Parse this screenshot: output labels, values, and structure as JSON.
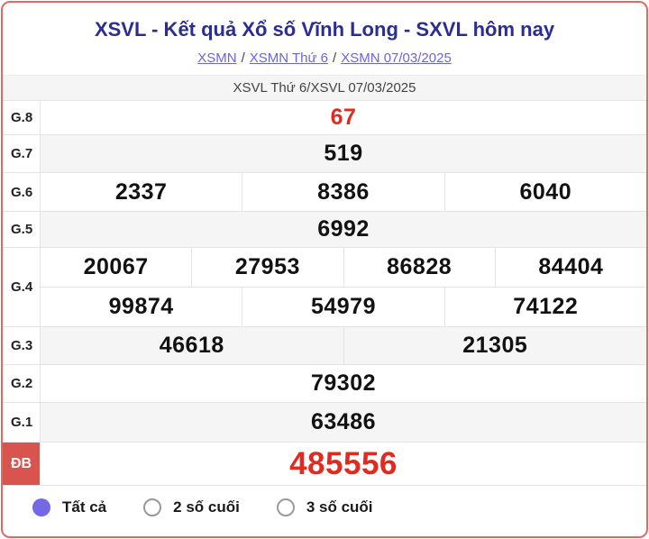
{
  "header": {
    "title": "XSVL - Kết quả Xổ số Vĩnh Long - SXVL hôm nay",
    "separator": "/",
    "breadcrumb1": {
      "link_region": "XSMN",
      "link_day": "XSMN Thứ 6",
      "link_date": "XSMN 07/03/2025"
    },
    "breadcrumb2": {
      "link_province": "XSVL",
      "day_text": "Thứ 6",
      "link_date": "XSVL 07/03/2025"
    }
  },
  "results": {
    "rows": [
      {
        "label": "G.8",
        "groups": [
          [
            "67"
          ]
        ]
      },
      {
        "label": "G.7",
        "groups": [
          [
            "519"
          ]
        ]
      },
      {
        "label": "G.6",
        "groups": [
          [
            "2337",
            "8386",
            "6040"
          ]
        ]
      },
      {
        "label": "G.5",
        "groups": [
          [
            "6992"
          ]
        ]
      },
      {
        "label": "G.4",
        "groups": [
          [
            "20067",
            "27953",
            "86828",
            "84404"
          ],
          [
            "99874",
            "54979",
            "74122"
          ]
        ]
      },
      {
        "label": "G.3",
        "groups": [
          [
            "46618",
            "21305"
          ]
        ]
      },
      {
        "label": "G.2",
        "groups": [
          [
            "79302"
          ]
        ]
      },
      {
        "label": "G.1",
        "groups": [
          [
            "63486"
          ]
        ]
      },
      {
        "label": "ĐB",
        "groups": [
          [
            "485556"
          ]
        ]
      }
    ]
  },
  "filters": {
    "options": [
      {
        "label": "Tất cả",
        "selected": true
      },
      {
        "label": "2 số cuối",
        "selected": false
      },
      {
        "label": "3 số cuối",
        "selected": false
      }
    ]
  },
  "colors": {
    "panel_border": "#e06962",
    "title_navy": "#2b2d94",
    "link_purple": "#6a64e4",
    "result_red": "#e02b20",
    "db_label_bg": "#d9534f",
    "row_alt_gray": "#f5f5f5",
    "radio_purple": "#7468e8"
  }
}
